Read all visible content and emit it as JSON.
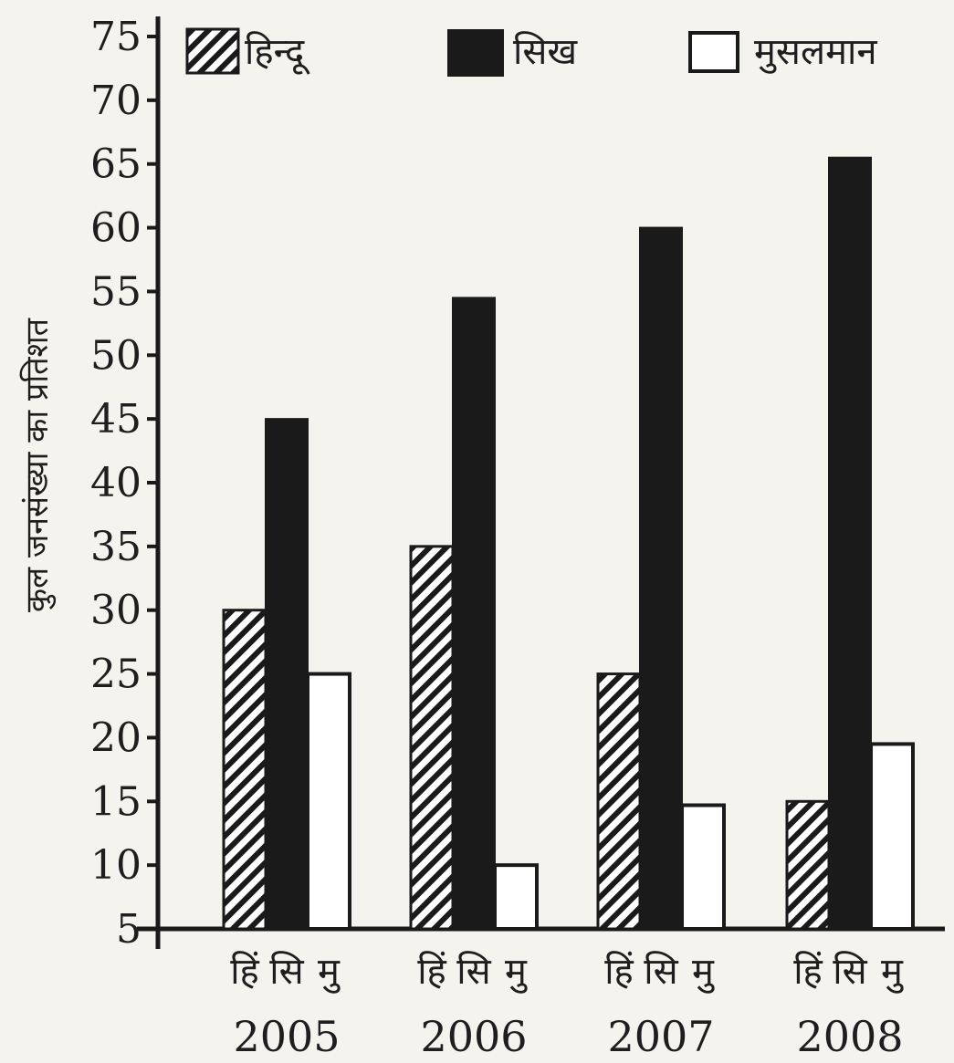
{
  "chart_data": {
    "type": "bar",
    "ylabel": "कुल जनसंख्या का प्रतिशत",
    "ylim": [
      5,
      75
    ],
    "yticks": [
      5,
      10,
      15,
      20,
      25,
      30,
      35,
      40,
      45,
      50,
      55,
      60,
      65,
      70,
      75
    ],
    "categories": [
      "2005",
      "2006",
      "2007",
      "2008"
    ],
    "bar_labels": [
      "हिं",
      "सि",
      "मु"
    ],
    "legend_position": "top",
    "series": [
      {
        "name": "हिन्दू",
        "values": [
          30,
          35,
          25,
          15
        ],
        "fill": "hatch",
        "color": "#1a1a1a"
      },
      {
        "name": "सिख",
        "values": [
          45,
          54.5,
          60,
          65.5
        ],
        "fill": "solid",
        "color": "#1a1a1a"
      },
      {
        "name": "मुसलमान",
        "values": [
          25,
          10,
          14.7,
          19.5
        ],
        "fill": "white",
        "color": "#ffffff"
      }
    ],
    "grid": false
  }
}
